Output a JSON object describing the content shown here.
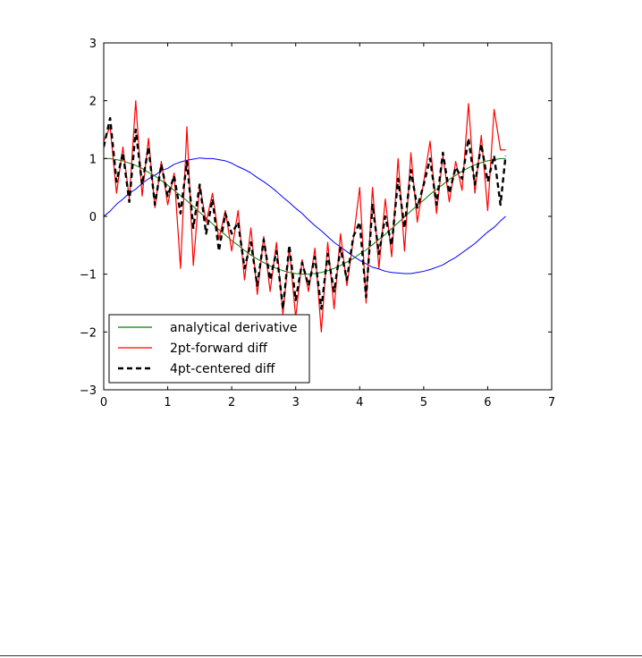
{
  "chart_data": {
    "type": "line",
    "xlim": [
      0,
      7
    ],
    "ylim": [
      -3,
      3
    ],
    "xticks": [
      0,
      1,
      2,
      3,
      4,
      5,
      6,
      7
    ],
    "xtick_labels": [
      "0",
      "1",
      "2",
      "3",
      "4",
      "5",
      "6",
      "7"
    ],
    "yticks": [
      3,
      2,
      1,
      0,
      -1,
      -2,
      -3
    ],
    "ytick_labels": [
      "3",
      "2",
      "1",
      "0",
      "−1",
      "−2",
      "−3"
    ],
    "grid": false,
    "legend": {
      "position": "lower-left"
    },
    "x": [
      0.0,
      0.1,
      0.2,
      0.3,
      0.4,
      0.5,
      0.6,
      0.7,
      0.8,
      0.9,
      1.0,
      1.1,
      1.2,
      1.3,
      1.4,
      1.5,
      1.6,
      1.7,
      1.8,
      1.9,
      2.0,
      2.1,
      2.2,
      2.3,
      2.4,
      2.5,
      2.6,
      2.7,
      2.8,
      2.9,
      3.0,
      3.1,
      3.2,
      3.3,
      3.4,
      3.5,
      3.6,
      3.7,
      3.8,
      3.9,
      4.0,
      4.1,
      4.2,
      4.3,
      4.4,
      4.5,
      4.6,
      4.7,
      4.8,
      4.9,
      5.0,
      5.1,
      5.2,
      5.3,
      5.4,
      5.5,
      5.6,
      5.7,
      5.8,
      5.9,
      6.0,
      6.1,
      6.2,
      6.28
    ],
    "series": [
      {
        "color": "#0000ff",
        "linestyle": "solid",
        "values": [
          0.0,
          0.09,
          0.21,
          0.3,
          0.4,
          0.47,
          0.57,
          0.65,
          0.71,
          0.79,
          0.83,
          0.9,
          0.94,
          0.97,
          0.99,
          1.01,
          1.0,
          1.0,
          0.98,
          0.96,
          0.92,
          0.86,
          0.81,
          0.75,
          0.67,
          0.6,
          0.52,
          0.43,
          0.33,
          0.24,
          0.14,
          0.05,
          -0.06,
          -0.16,
          -0.25,
          -0.35,
          -0.45,
          -0.53,
          -0.61,
          -0.69,
          -0.76,
          -0.82,
          -0.88,
          -0.91,
          -0.95,
          -0.97,
          -0.98,
          -0.99,
          -0.99,
          -0.97,
          -0.95,
          -0.92,
          -0.88,
          -0.84,
          -0.77,
          -0.71,
          -0.63,
          -0.55,
          -0.47,
          -0.37,
          -0.27,
          -0.19,
          -0.08,
          0.0
        ]
      },
      {
        "name": "analytical derivative",
        "color": "#008000",
        "linestyle": "solid",
        "values": [
          1.0,
          1.0,
          0.98,
          0.96,
          0.92,
          0.88,
          0.83,
          0.76,
          0.7,
          0.62,
          0.54,
          0.45,
          0.36,
          0.27,
          0.17,
          0.07,
          -0.03,
          -0.13,
          -0.23,
          -0.32,
          -0.42,
          -0.5,
          -0.59,
          -0.67,
          -0.74,
          -0.8,
          -0.86,
          -0.9,
          -0.94,
          -0.97,
          -0.99,
          -1.0,
          -1.0,
          -0.99,
          -0.97,
          -0.94,
          -0.9,
          -0.85,
          -0.79,
          -0.73,
          -0.65,
          -0.58,
          -0.49,
          -0.4,
          -0.31,
          -0.21,
          -0.11,
          -0.01,
          0.09,
          0.19,
          0.28,
          0.38,
          0.47,
          0.55,
          0.64,
          0.71,
          0.78,
          0.84,
          0.89,
          0.93,
          0.96,
          0.98,
          1.0,
          1.0
        ]
      },
      {
        "name": "2pt-forward diff",
        "color": "#ff0000",
        "linestyle": "solid",
        "values": [
          1.3,
          1.55,
          0.4,
          1.2,
          0.3,
          2.0,
          0.35,
          1.35,
          0.15,
          0.95,
          0.2,
          0.75,
          -0.9,
          1.55,
          -0.85,
          0.55,
          -0.1,
          0.4,
          -0.4,
          0.1,
          -0.6,
          0.1,
          -1.1,
          -0.2,
          -1.35,
          -0.35,
          -1.3,
          -0.45,
          -1.7,
          -0.55,
          -1.75,
          -0.75,
          -1.3,
          -0.55,
          -2.0,
          -0.45,
          -1.6,
          -0.3,
          -1.2,
          -0.4,
          0.5,
          -1.5,
          0.5,
          -0.9,
          0.3,
          -0.7,
          1.0,
          -0.6,
          1.1,
          -0.1,
          0.6,
          1.3,
          0.05,
          1.05,
          0.25,
          0.95,
          0.45,
          1.95,
          0.4,
          1.4,
          0.1,
          1.85,
          1.15,
          1.15
        ]
      },
      {
        "name": "4pt-centered diff",
        "color": "#000000",
        "linestyle": "dashed",
        "values": [
          1.2,
          1.7,
          0.6,
          1.1,
          0.25,
          1.5,
          0.55,
          1.2,
          0.2,
          0.9,
          0.35,
          0.7,
          0.05,
          0.95,
          -0.2,
          0.55,
          -0.3,
          0.3,
          -0.6,
          0.05,
          -0.3,
          -0.1,
          -0.9,
          -0.45,
          -1.2,
          -0.4,
          -1.1,
          -0.6,
          -1.6,
          -0.5,
          -1.45,
          -0.8,
          -1.2,
          -0.7,
          -1.6,
          -0.65,
          -1.3,
          -0.55,
          -1.1,
          -0.35,
          -0.1,
          -1.4,
          0.2,
          -0.65,
          0.0,
          -0.5,
          0.65,
          -0.2,
          0.8,
          0.15,
          0.55,
          1.0,
          0.2,
          1.1,
          0.4,
          0.85,
          0.65,
          1.35,
          0.55,
          1.25,
          0.6,
          1.05,
          0.2,
          1.05
        ]
      }
    ]
  }
}
